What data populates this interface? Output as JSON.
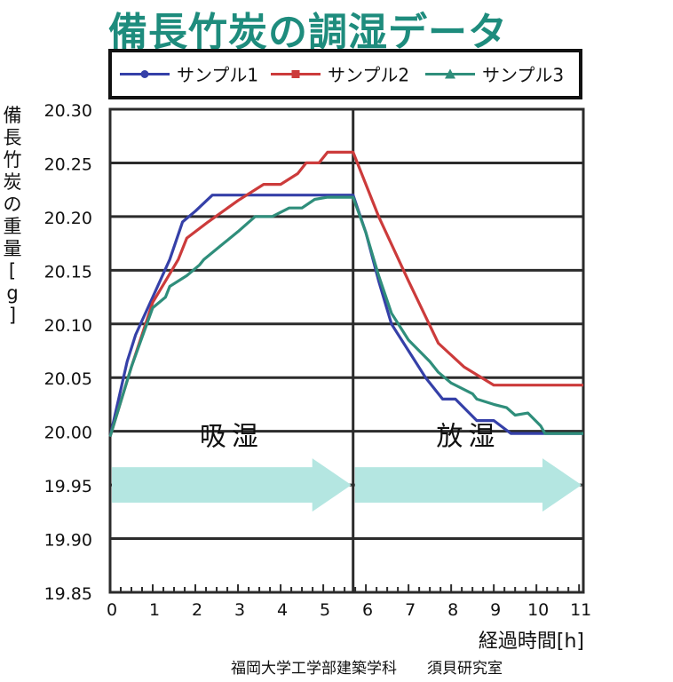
{
  "chart_data": {
    "type": "line",
    "title": "備長竹炭の調湿データ",
    "ylabel": "備長竹炭の重量[g]",
    "xlabel": "経過時間[h]",
    "ylim": [
      19.85,
      20.3
    ],
    "xlim": [
      0,
      11.1
    ],
    "yticks": [
      "20.30",
      "20.25",
      "20.20",
      "20.15",
      "20.10",
      "20.05",
      "20.00",
      "19.95",
      "19.90",
      "19.85"
    ],
    "xticks": [
      "0",
      "1",
      "2",
      "3",
      "4",
      "5",
      "6",
      "7",
      "8",
      "9",
      "10",
      "11"
    ],
    "phase_divider_x": 5.7,
    "phases": [
      {
        "label": "吸湿",
        "from": 0,
        "to": 5.7
      },
      {
        "label": "放湿",
        "from": 5.7,
        "to": 11.1
      }
    ],
    "legend_placement": "top",
    "grid": true,
    "series": [
      {
        "name": "サンプル1",
        "color": "#3540a8",
        "marker": "circle",
        "points": [
          [
            0,
            19.995
          ],
          [
            0.4,
            20.065
          ],
          [
            0.6,
            20.09
          ],
          [
            1,
            20.125
          ],
          [
            1.4,
            20.16
          ],
          [
            1.7,
            20.195
          ],
          [
            2,
            20.205
          ],
          [
            2.4,
            20.22
          ],
          [
            3,
            20.22
          ],
          [
            4,
            20.22
          ],
          [
            5,
            20.22
          ],
          [
            5.7,
            20.22
          ],
          [
            6,
            20.185
          ],
          [
            6.3,
            20.14
          ],
          [
            6.6,
            20.1
          ],
          [
            7,
            20.075
          ],
          [
            7.4,
            20.05
          ],
          [
            7.8,
            20.03
          ],
          [
            8.1,
            20.03
          ],
          [
            8.6,
            20.01
          ],
          [
            9,
            20.01
          ],
          [
            9.4,
            19.998
          ],
          [
            10,
            19.998
          ],
          [
            11,
            19.998
          ],
          [
            11.1,
            19.998
          ]
        ]
      },
      {
        "name": "サンプル2",
        "color": "#cc3b3b",
        "marker": "square",
        "points": [
          [
            0,
            19.995
          ],
          [
            0.5,
            20.06
          ],
          [
            1,
            20.12
          ],
          [
            1.3,
            20.14
          ],
          [
            1.6,
            20.16
          ],
          [
            1.8,
            20.18
          ],
          [
            2.3,
            20.195
          ],
          [
            3,
            20.215
          ],
          [
            3.6,
            20.23
          ],
          [
            4,
            20.23
          ],
          [
            4.4,
            20.24
          ],
          [
            4.6,
            20.25
          ],
          [
            4.9,
            20.25
          ],
          [
            5.1,
            20.26
          ],
          [
            5.7,
            20.26
          ],
          [
            6.3,
            20.2
          ],
          [
            7,
            20.14
          ],
          [
            7.7,
            20.082
          ],
          [
            8.3,
            20.06
          ],
          [
            9,
            20.043
          ],
          [
            10,
            20.043
          ],
          [
            11,
            20.043
          ],
          [
            11.1,
            20.043
          ]
        ]
      },
      {
        "name": "サンプル3",
        "color": "#2f8e7b",
        "marker": "triangle",
        "points": [
          [
            0,
            19.995
          ],
          [
            0.5,
            20.06
          ],
          [
            1,
            20.115
          ],
          [
            1.3,
            20.125
          ],
          [
            1.4,
            20.135
          ],
          [
            1.8,
            20.145
          ],
          [
            2.1,
            20.155
          ],
          [
            2.2,
            20.16
          ],
          [
            2.6,
            20.173
          ],
          [
            3,
            20.186
          ],
          [
            3.4,
            20.2
          ],
          [
            3.8,
            20.2
          ],
          [
            4.2,
            20.208
          ],
          [
            4.5,
            20.208
          ],
          [
            4.8,
            20.216
          ],
          [
            5.1,
            20.218
          ],
          [
            5.7,
            20.218
          ],
          [
            6,
            20.185
          ],
          [
            6.3,
            20.145
          ],
          [
            6.6,
            20.11
          ],
          [
            7,
            20.085
          ],
          [
            7.5,
            20.065
          ],
          [
            7.7,
            20.055
          ],
          [
            8,
            20.045
          ],
          [
            8.5,
            20.035
          ],
          [
            8.6,
            20.03
          ],
          [
            9,
            20.025
          ],
          [
            9.3,
            20.022
          ],
          [
            9.5,
            20.015
          ],
          [
            9.8,
            20.017
          ],
          [
            10.1,
            20.005
          ],
          [
            10.2,
            19.998
          ],
          [
            11,
            19.998
          ],
          [
            11.1,
            19.998
          ]
        ]
      }
    ]
  },
  "footer": {
    "institution": "福岡大学工学部建築学科",
    "lab": "須貝研究室"
  }
}
